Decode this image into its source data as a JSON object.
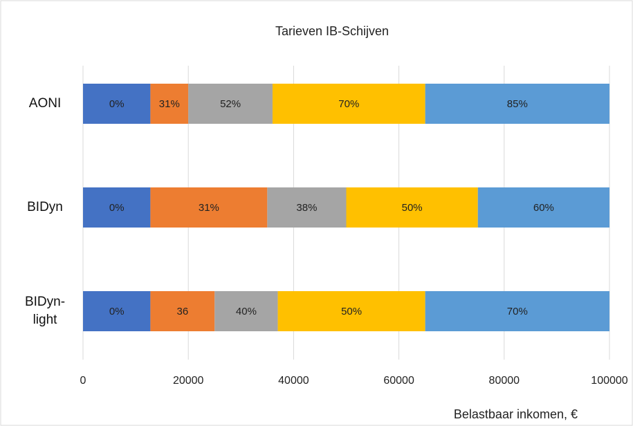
{
  "chart_data": {
    "type": "stacked-bar-horizontal",
    "title": "Tarieven IB-Schijven",
    "x_label": "Belastbaar inkomen, €",
    "categories": [
      "AONI",
      "BIDyn",
      "BIDyn-light"
    ],
    "series": [
      {
        "color": "#4472c4",
        "values": [
          12800,
          12800,
          12800
        ],
        "labels": [
          "0%",
          "0%",
          "0%"
        ]
      },
      {
        "color": "#ed7d31",
        "values": [
          7200,
          22200,
          12200
        ],
        "labels": [
          "31%",
          "31%",
          "36"
        ]
      },
      {
        "color": "#a5a5a5",
        "values": [
          16000,
          15000,
          12000
        ],
        "labels": [
          "52%",
          "38%",
          "40%"
        ]
      },
      {
        "color": "#ffc000",
        "values": [
          29000,
          25000,
          28000
        ],
        "labels": [
          "70%",
          "50%",
          "50%"
        ]
      },
      {
        "color": "#5b9bd5",
        "values": [
          35000,
          25000,
          35000
        ],
        "labels": [
          "85%",
          "60%",
          "70%"
        ]
      }
    ],
    "xlim": [
      0,
      100000
    ],
    "xticks": [
      0,
      20000,
      40000,
      60000,
      80000,
      100000
    ],
    "grid": true
  }
}
